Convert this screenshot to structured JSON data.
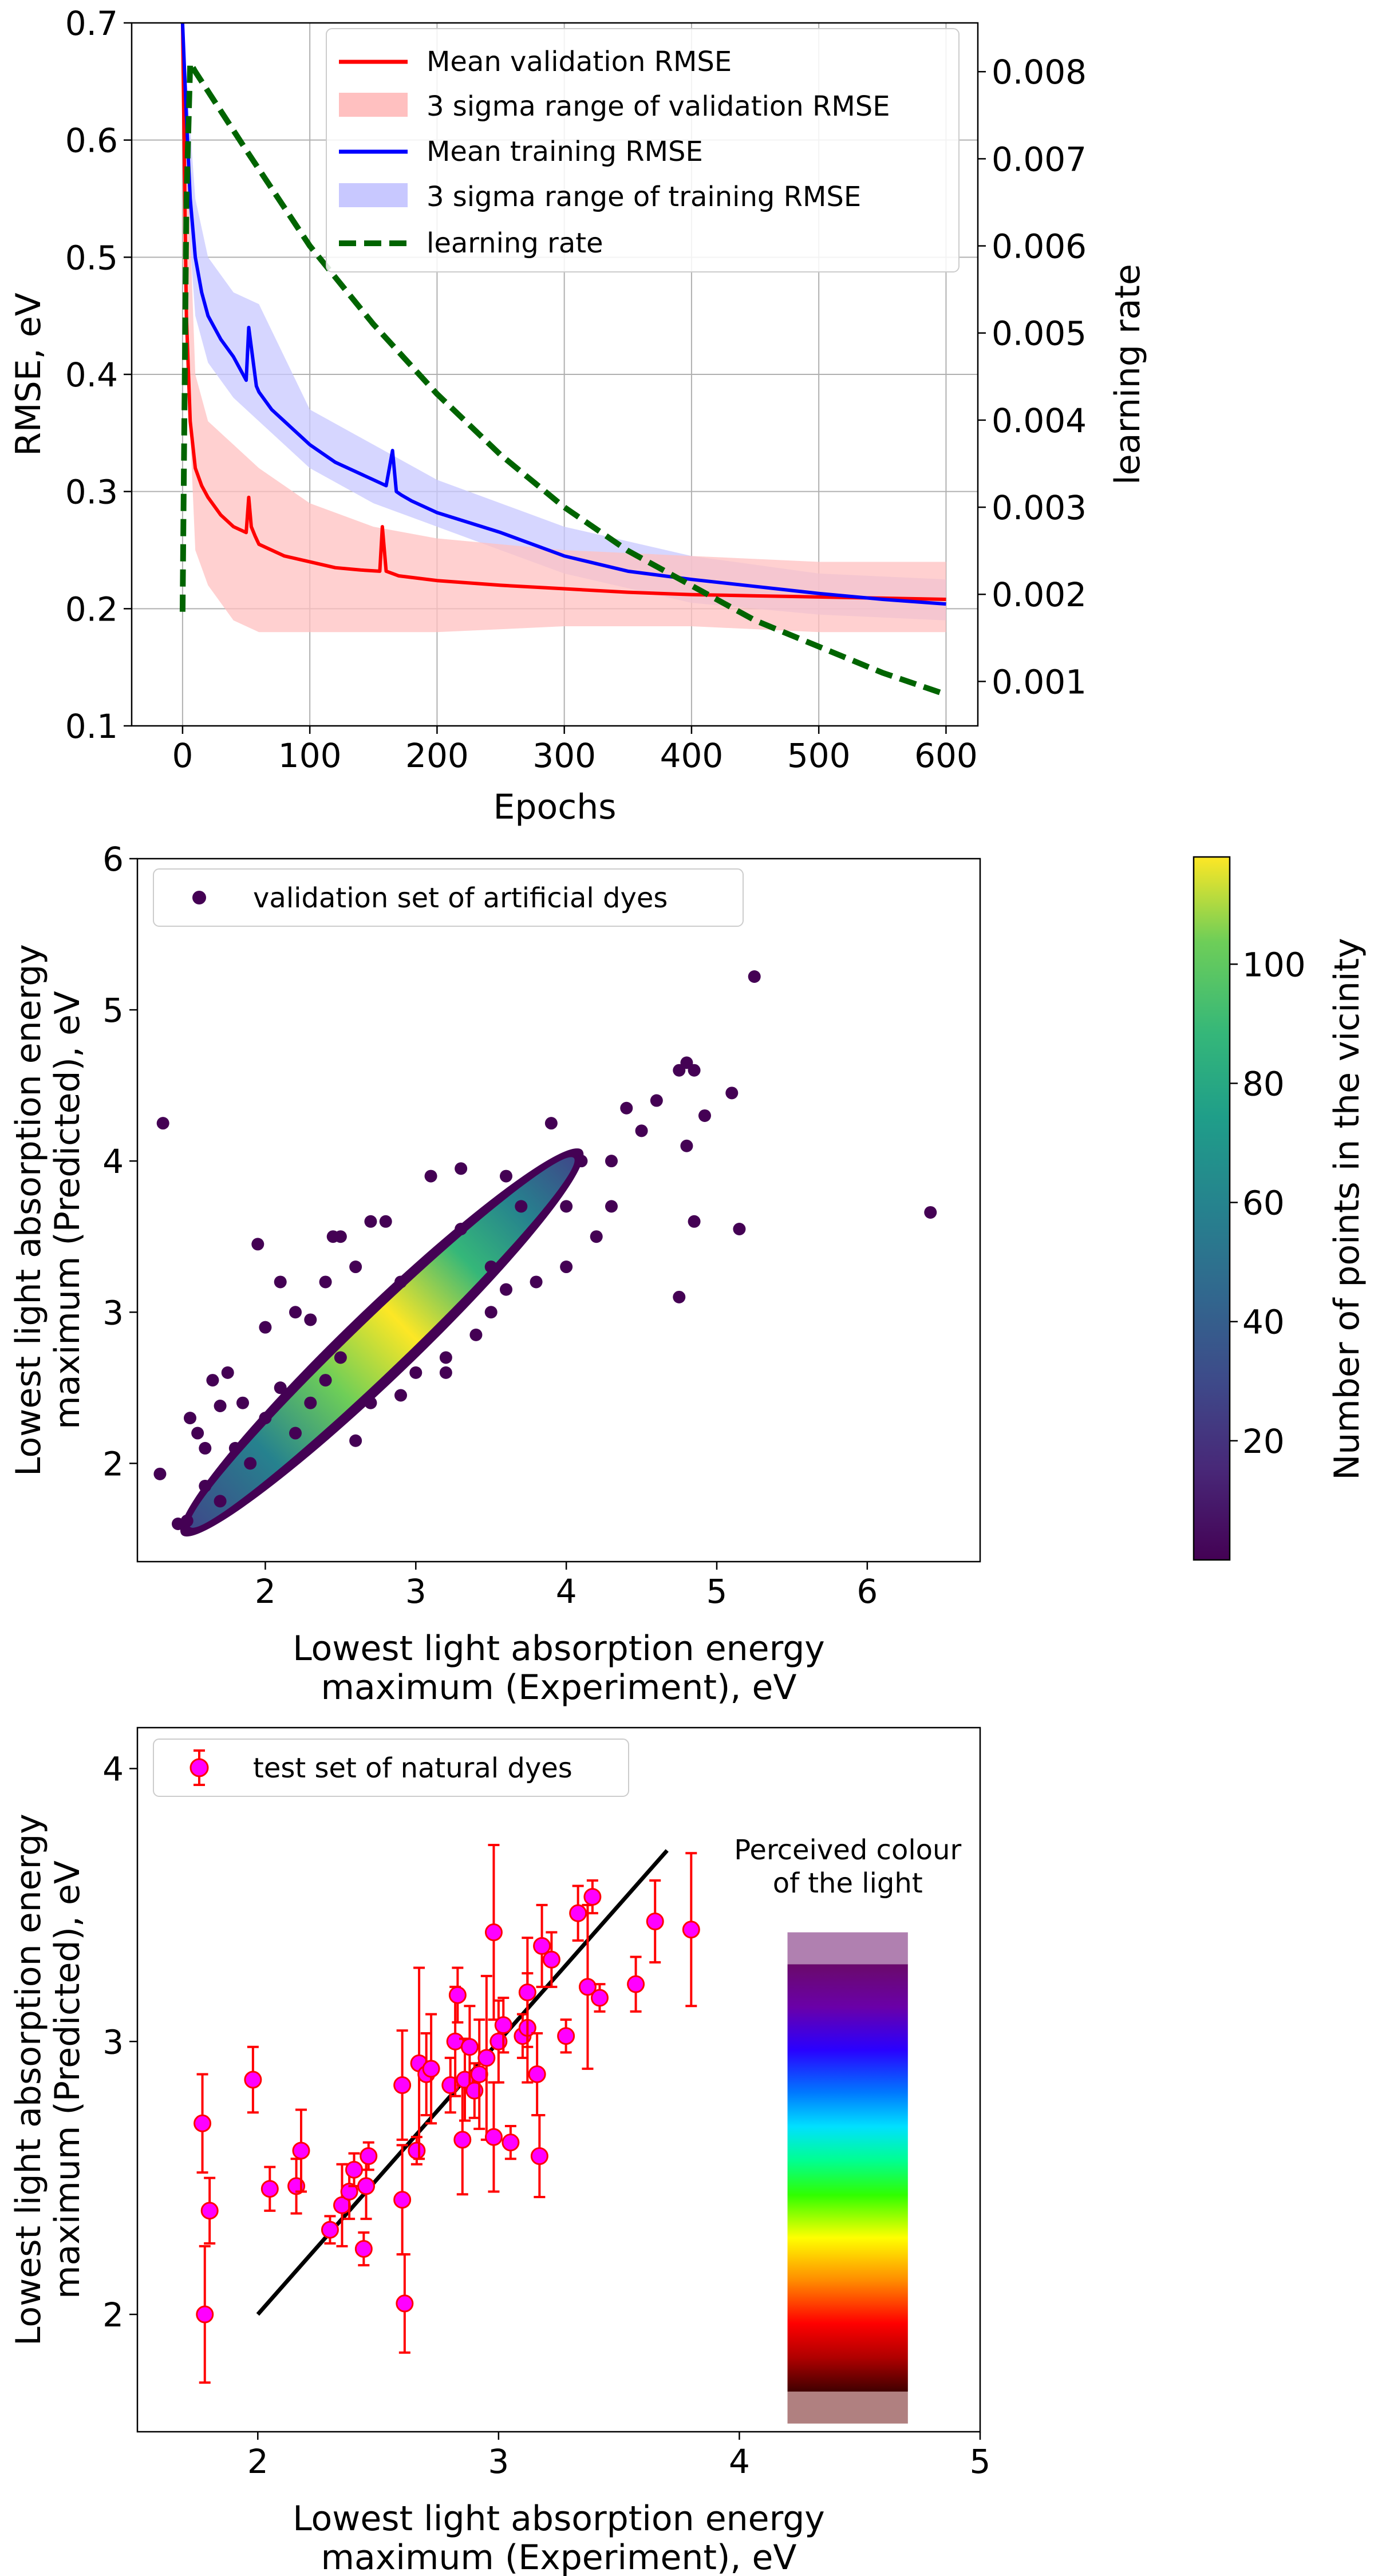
{
  "chart_data": [
    {
      "type": "line",
      "xlabel": "Epochs",
      "ylabel": "RMSE, eV",
      "ylabel_right": "learning rate",
      "xlim": [
        -40,
        625
      ],
      "ylim": [
        0.1,
        0.7
      ],
      "ylim_right": [
        0.00049,
        0.00856
      ],
      "xticks": [
        0,
        100,
        200,
        300,
        400,
        500,
        600
      ],
      "xtick_labels": [
        "0",
        "100",
        "200",
        "300",
        "400",
        "500",
        "600"
      ],
      "yticks": [
        0.1,
        0.2,
        0.3,
        0.4,
        0.5,
        0.6,
        0.7
      ],
      "ytick_labels": [
        "0.1",
        "0.2",
        "0.3",
        "0.4",
        "0.5",
        "0.6",
        "0.7"
      ],
      "yticks_right": [
        0.001,
        0.002,
        0.003,
        0.004,
        0.005,
        0.006,
        0.007,
        0.008
      ],
      "ytick_right_labels": [
        "0.001",
        "0.002",
        "0.003",
        "0.004",
        "0.005",
        "0.006",
        "0.007",
        "0.008"
      ],
      "grid": true,
      "legend_position": "top-right",
      "colors": {
        "validation": "#ff0000",
        "validation_band": "#ffc0c0",
        "training": "#0000ff",
        "training_band": "#c8c8ff",
        "learning_rate": "#006400"
      },
      "series": [
        {
          "name": "Mean validation RMSE",
          "x": [
            0,
            3,
            6,
            10,
            15,
            20,
            30,
            40,
            50,
            52,
            54,
            57,
            60,
            70,
            80,
            100,
            120,
            140,
            155,
            157,
            160,
            170,
            200,
            250,
            300,
            350,
            400,
            450,
            500,
            550,
            600
          ],
          "y": [
            0.7,
            0.45,
            0.36,
            0.32,
            0.305,
            0.295,
            0.28,
            0.27,
            0.265,
            0.295,
            0.27,
            0.262,
            0.255,
            0.25,
            0.245,
            0.24,
            0.235,
            0.233,
            0.232,
            0.27,
            0.232,
            0.228,
            0.224,
            0.22,
            0.217,
            0.214,
            0.212,
            0.211,
            0.21,
            0.209,
            0.208
          ]
        },
        {
          "name": "3 sigma range of validation RMSE",
          "x": [
            0,
            10,
            20,
            40,
            60,
            100,
            150,
            200,
            300,
            400,
            500,
            600
          ],
          "y_low": [
            0.5,
            0.25,
            0.22,
            0.19,
            0.18,
            0.18,
            0.18,
            0.18,
            0.185,
            0.185,
            0.18,
            0.18
          ],
          "y_high": [
            0.7,
            0.4,
            0.36,
            0.34,
            0.32,
            0.29,
            0.27,
            0.26,
            0.25,
            0.245,
            0.24,
            0.24
          ]
        },
        {
          "name": "Mean training RMSE",
          "x": [
            0,
            3,
            6,
            10,
            15,
            20,
            30,
            40,
            45,
            50,
            52,
            55,
            58,
            60,
            70,
            80,
            100,
            120,
            150,
            160,
            165,
            168,
            172,
            180,
            200,
            250,
            300,
            350,
            400,
            450,
            500,
            550,
            600
          ],
          "y": [
            0.7,
            0.62,
            0.55,
            0.5,
            0.47,
            0.45,
            0.43,
            0.415,
            0.405,
            0.395,
            0.44,
            0.415,
            0.39,
            0.385,
            0.37,
            0.36,
            0.34,
            0.325,
            0.31,
            0.305,
            0.335,
            0.3,
            0.297,
            0.292,
            0.282,
            0.265,
            0.245,
            0.232,
            0.225,
            0.219,
            0.213,
            0.208,
            0.204
          ]
        },
        {
          "name": "3 sigma range of training RMSE",
          "x": [
            0,
            10,
            20,
            40,
            60,
            100,
            150,
            200,
            300,
            400,
            500,
            600
          ],
          "y_low": [
            0.6,
            0.45,
            0.41,
            0.38,
            0.36,
            0.32,
            0.29,
            0.27,
            0.23,
            0.205,
            0.195,
            0.19
          ],
          "y_high": [
            0.7,
            0.55,
            0.5,
            0.47,
            0.46,
            0.37,
            0.34,
            0.31,
            0.27,
            0.245,
            0.23,
            0.225
          ]
        },
        {
          "name": "learning rate",
          "x": [
            0,
            3,
            6,
            10,
            50,
            100,
            150,
            200,
            250,
            300,
            350,
            400,
            450,
            500,
            550,
            600
          ],
          "y": [
            0.0018,
            0.0065,
            0.0081,
            0.008,
            0.0071,
            0.006,
            0.0051,
            0.0043,
            0.0036,
            0.003,
            0.0025,
            0.0021,
            0.0017,
            0.0014,
            0.0011,
            0.00085
          ]
        }
      ]
    },
    {
      "type": "scatter",
      "xlabel": "Lowest light absorption energy maximum (Experiment), eV",
      "xlabel_lines": [
        "Lowest light absorption energy",
        "maximum (Experiment), eV"
      ],
      "ylabel": "Lowest light absorption energy maximum (Predicted), eV",
      "ylabel_lines": [
        "Lowest light absorption energy",
        "maximum (Predicted), eV"
      ],
      "xlim": [
        1.15,
        6.75
      ],
      "ylim": [
        1.35,
        6.0
      ],
      "xticks": [
        2,
        3,
        4,
        5,
        6
      ],
      "xtick_labels": [
        "2",
        "3",
        "4",
        "5",
        "6"
      ],
      "yticks": [
        2,
        3,
        4,
        5,
        6
      ],
      "ytick_labels": [
        "2",
        "3",
        "4",
        "5",
        "6"
      ],
      "grid": false,
      "legend_position": "top-left",
      "series": [
        {
          "name": "validation set of artificial dyes",
          "color": "#440154",
          "points": [
            [
              1.32,
              4.25
            ],
            [
              1.3,
              1.93
            ],
            [
              1.95,
              3.45
            ],
            [
              2.2,
              3.0
            ],
            [
              2.1,
              3.2
            ],
            [
              2.45,
              3.5
            ],
            [
              2.5,
              3.5
            ],
            [
              1.65,
              2.55
            ],
            [
              1.55,
              2.2
            ],
            [
              1.5,
              2.3
            ],
            [
              1.48,
              1.62
            ],
            [
              1.42,
              1.6
            ],
            [
              1.7,
              2.38
            ],
            [
              1.85,
              2.4
            ],
            [
              2.0,
              2.9
            ],
            [
              2.3,
              2.95
            ],
            [
              2.6,
              3.3
            ],
            [
              2.7,
              3.6
            ],
            [
              2.6,
              2.15
            ],
            [
              2.9,
              2.45
            ],
            [
              3.0,
              2.6
            ],
            [
              3.2,
              2.7
            ],
            [
              3.5,
              3.0
            ],
            [
              3.6,
              3.15
            ],
            [
              3.8,
              3.2
            ],
            [
              4.0,
              3.3
            ],
            [
              4.2,
              3.5
            ],
            [
              4.3,
              3.7
            ],
            [
              4.5,
              4.2
            ],
            [
              4.6,
              4.4
            ],
            [
              4.75,
              4.6
            ],
            [
              4.8,
              4.65
            ],
            [
              4.85,
              4.6
            ],
            [
              4.92,
              4.3
            ],
            [
              4.8,
              4.1
            ],
            [
              4.85,
              3.6
            ],
            [
              4.75,
              3.1
            ],
            [
              5.1,
              4.45
            ],
            [
              5.15,
              3.55
            ],
            [
              5.25,
              5.22
            ],
            [
              6.42,
              3.66
            ],
            [
              4.4,
              4.35
            ],
            [
              3.9,
              4.25
            ],
            [
              3.6,
              3.9
            ],
            [
              3.3,
              3.95
            ],
            [
              2.8,
              3.6
            ],
            [
              2.4,
              3.2
            ],
            [
              2.2,
              2.2
            ],
            [
              3.2,
              2.6
            ],
            [
              3.4,
              2.85
            ],
            [
              1.7,
              1.75
            ],
            [
              1.9,
              2.0
            ],
            [
              2.1,
              2.5
            ],
            [
              2.4,
              2.55
            ],
            [
              2.9,
              3.2
            ],
            [
              3.3,
              3.55
            ],
            [
              3.7,
              3.7
            ],
            [
              4.1,
              4.0
            ],
            [
              4.3,
              4.0
            ],
            [
              3.1,
              3.9
            ],
            [
              2.5,
              2.7
            ],
            [
              1.8,
              2.1
            ],
            [
              1.6,
              1.85
            ],
            [
              3.5,
              3.3
            ],
            [
              4.0,
              3.7
            ],
            [
              2.3,
              2.4
            ],
            [
              2.7,
              2.4
            ],
            [
              2.0,
              2.3
            ],
            [
              1.75,
              2.6
            ],
            [
              1.6,
              2.1
            ]
          ]
        }
      ],
      "density_band": {
        "x_start": 1.5,
        "y_start": 1.58,
        "x_end": 4.05,
        "y_end": 4.02
      },
      "colorbar": {
        "label": "Number of points in the vicinity",
        "min": 0,
        "max": 118,
        "ticks": [
          20,
          40,
          60,
          80,
          100
        ],
        "tick_labels": [
          "20",
          "40",
          "60",
          "80",
          "100"
        ],
        "colormap": "viridis"
      }
    },
    {
      "type": "scatter",
      "xlabel": "Lowest light absorption energy maximum (Experiment), eV",
      "xlabel_lines": [
        "Lowest light absorption energy",
        "maximum (Experiment), eV"
      ],
      "ylabel": "Lowest light absorption energy maximum (Predicted), eV",
      "ylabel_lines": [
        "Lowest light absorption energy",
        "maximum (Predicted), eV"
      ],
      "xlim": [
        1.5,
        5.0
      ],
      "ylim": [
        1.57,
        4.15
      ],
      "xticks": [
        2,
        3,
        4,
        5
      ],
      "xtick_labels": [
        "2",
        "3",
        "4",
        "5"
      ],
      "yticks": [
        2,
        3,
        4
      ],
      "ytick_labels": [
        "2",
        "3",
        "4"
      ],
      "grid": false,
      "legend_position": "top-left",
      "annotation": "Perceived colour of the light",
      "annotation_lines": [
        "Perceived colour",
        "of the light"
      ],
      "reference_line": {
        "x": [
          2.0,
          3.7
        ],
        "y": [
          2.0,
          3.7
        ],
        "color": "#000000"
      },
      "series": [
        {
          "name": "test set of natural dyes",
          "marker_color": "#ff00ff",
          "error_color": "#ff0000",
          "points": [
            {
              "x": 1.77,
              "y": 2.7,
              "err": 0.18
            },
            {
              "x": 1.78,
              "y": 2.0,
              "err": 0.25
            },
            {
              "x": 1.8,
              "y": 2.38,
              "err": 0.12
            },
            {
              "x": 1.98,
              "y": 2.86,
              "err": 0.12
            },
            {
              "x": 2.05,
              "y": 2.46,
              "err": 0.08
            },
            {
              "x": 2.16,
              "y": 2.47,
              "err": 0.1
            },
            {
              "x": 2.18,
              "y": 2.6,
              "err": 0.15
            },
            {
              "x": 2.3,
              "y": 2.31,
              "err": 0.05
            },
            {
              "x": 2.35,
              "y": 2.4,
              "err": 0.15
            },
            {
              "x": 2.38,
              "y": 2.45,
              "err": 0.1
            },
            {
              "x": 2.4,
              "y": 2.53,
              "err": 0.06
            },
            {
              "x": 2.44,
              "y": 2.24,
              "err": 0.06
            },
            {
              "x": 2.45,
              "y": 2.47,
              "err": 0.12
            },
            {
              "x": 2.46,
              "y": 2.58,
              "err": 0.05
            },
            {
              "x": 2.6,
              "y": 2.42,
              "err": 0.2
            },
            {
              "x": 2.6,
              "y": 2.84,
              "err": 0.2
            },
            {
              "x": 2.61,
              "y": 2.04,
              "err": 0.18
            },
            {
              "x": 2.66,
              "y": 2.6,
              "err": 0.05
            },
            {
              "x": 2.67,
              "y": 2.92,
              "err": 0.35
            },
            {
              "x": 2.7,
              "y": 2.88,
              "err": 0.15
            },
            {
              "x": 2.72,
              "y": 2.9,
              "err": 0.2
            },
            {
              "x": 2.8,
              "y": 2.84,
              "err": 0.1
            },
            {
              "x": 2.82,
              "y": 3.0,
              "err": 0.2
            },
            {
              "x": 2.83,
              "y": 3.17,
              "err": 0.1
            },
            {
              "x": 2.85,
              "y": 2.64,
              "err": 0.2
            },
            {
              "x": 2.86,
              "y": 2.86,
              "err": 0.15
            },
            {
              "x": 2.88,
              "y": 2.98,
              "err": 0.15
            },
            {
              "x": 2.9,
              "y": 2.82,
              "err": 0.1
            },
            {
              "x": 2.92,
              "y": 2.88,
              "err": 0.2
            },
            {
              "x": 2.95,
              "y": 2.94,
              "err": 0.3
            },
            {
              "x": 2.98,
              "y": 3.4,
              "err": 0.32
            },
            {
              "x": 2.98,
              "y": 2.65,
              "err": 0.2
            },
            {
              "x": 3.0,
              "y": 3.0,
              "err": 0.15
            },
            {
              "x": 3.02,
              "y": 3.06,
              "err": 0.1
            },
            {
              "x": 3.05,
              "y": 2.63,
              "err": 0.06
            },
            {
              "x": 3.1,
              "y": 3.02,
              "err": 0.08
            },
            {
              "x": 3.12,
              "y": 3.05,
              "err": 0.2
            },
            {
              "x": 3.12,
              "y": 3.18,
              "err": 0.2
            },
            {
              "x": 3.16,
              "y": 2.88,
              "err": 0.15
            },
            {
              "x": 3.17,
              "y": 2.58,
              "err": 0.15
            },
            {
              "x": 3.18,
              "y": 3.35,
              "err": 0.15
            },
            {
              "x": 3.22,
              "y": 3.3,
              "err": 0.1
            },
            {
              "x": 3.28,
              "y": 3.02,
              "err": 0.06
            },
            {
              "x": 3.33,
              "y": 3.47,
              "err": 0.1
            },
            {
              "x": 3.37,
              "y": 3.2,
              "err": 0.3
            },
            {
              "x": 3.39,
              "y": 3.53,
              "err": 0.06
            },
            {
              "x": 3.42,
              "y": 3.16,
              "err": 0.05
            },
            {
              "x": 3.57,
              "y": 3.21,
              "err": 0.1
            },
            {
              "x": 3.65,
              "y": 3.44,
              "err": 0.15
            },
            {
              "x": 3.8,
              "y": 3.41,
              "err": 0.28
            }
          ]
        }
      ],
      "colour_bar_range": {
        "top": 3.4,
        "bottom": 1.6
      }
    }
  ]
}
